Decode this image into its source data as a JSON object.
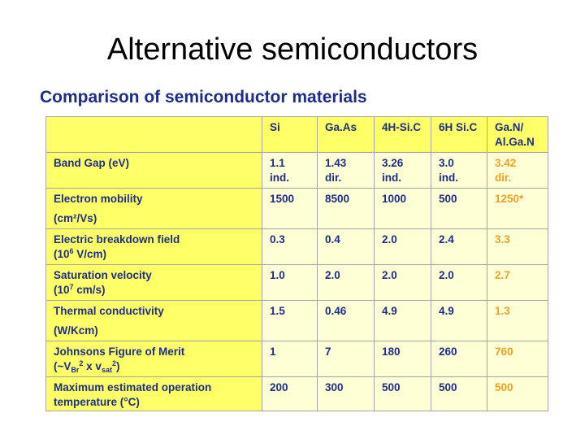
{
  "slide": {
    "title": "Alternative semiconductors",
    "subtitle": "Comparison of semiconductor materials"
  },
  "table": {
    "header": [
      "",
      "Si",
      "Ga.As",
      "4H-Si.C",
      "6H Si.C",
      "Ga.N/",
      "Al.Ga.N"
    ],
    "rows": [
      {
        "label": "Band Gap (eV)",
        "si": [
          "1.1",
          "ind."
        ],
        "gaas": [
          "1.43",
          "dir."
        ],
        "sic4h": [
          "3.26",
          "ind."
        ],
        "sic6h": [
          "3.0",
          "ind."
        ],
        "gan": [
          "3.42",
          "dir."
        ]
      },
      {
        "label": "Electron mobility",
        "label2": "(cm²/Vs)",
        "si": "1500",
        "gaas": "8500",
        "sic4h": "1000",
        "sic6h": "500",
        "gan": "1250*"
      },
      {
        "label": "Electric breakdown field",
        "label_unit_prefix": "(10",
        "label_unit_exp": "6",
        "label_unit_suffix": " V/cm)",
        "si": "0.3",
        "gaas": "0.4",
        "sic4h": "2.0",
        "sic6h": "2.4",
        "gan": "3.3"
      },
      {
        "label": "Saturation velocity",
        "label_unit_prefix": "(10",
        "label_unit_exp": "7",
        "label_unit_suffix": " cm/s)",
        "si": "1.0",
        "gaas": "2.0",
        "sic4h": "2.0",
        "sic6h": "2.0",
        "gan": "2.7"
      },
      {
        "label": "Thermal conductivity",
        "label2": "(W/Kcm)",
        "si": "1.5",
        "gaas": "0.46",
        "sic4h": "4.9",
        "sic6h": "4.9",
        "gan": "1.3"
      },
      {
        "label": "Johnsons Figure of Merit",
        "formula": {
          "open": "(~V",
          "sub1": "Br",
          "sup1": "2",
          "mid": " x v",
          "sub2": "sat",
          "sup2": "2",
          "close": ")"
        },
        "si": "1",
        "gaas": "7",
        "sic4h": "180",
        "sic6h": "260",
        "gan": "760"
      },
      {
        "label": "Maximum estimated operation",
        "label2": "temperature (°C)",
        "si": "200",
        "gaas": "300",
        "sic4h": "500",
        "sic6h": "500",
        "gan": "500"
      }
    ]
  }
}
